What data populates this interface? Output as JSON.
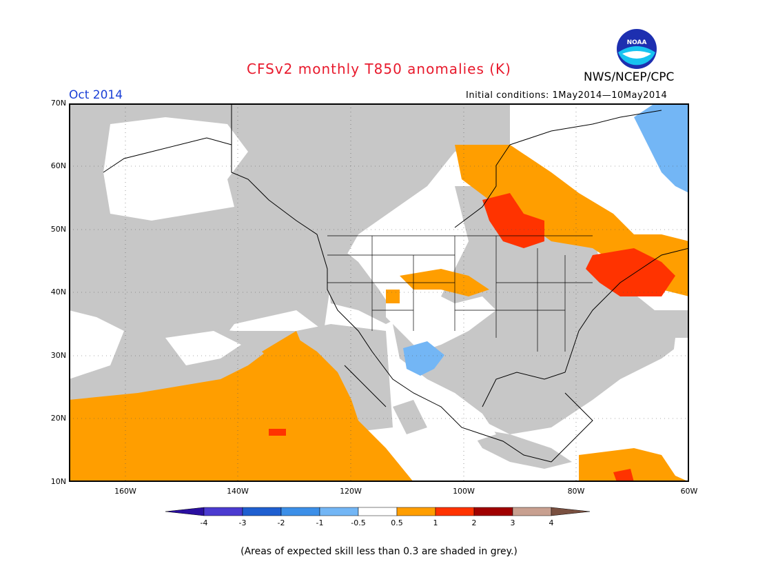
{
  "title": "CFSv2 monthly T850 anomalies (K)",
  "period": "Oct 2014",
  "agency": "NWS/NCEP/CPC",
  "initial_conditions": "Initial conditions: 1May2014—10May2014",
  "footnote": "(Areas of expected skill less than 0.3 are shaded in grey.)",
  "logo_text": "NOAA",
  "map": {
    "projection": "lat-lon",
    "lon_range": [
      "170W",
      "60W"
    ],
    "lat_range": [
      "10N",
      "70N"
    ],
    "lat_labels": [
      "70N",
      "60N",
      "50N",
      "40N",
      "30N",
      "20N",
      "10N"
    ],
    "lon_labels": [
      "160W",
      "140W",
      "120W",
      "100W",
      "80W",
      "60W"
    ]
  },
  "colorbar": {
    "labels": [
      "-4",
      "-3",
      "-2",
      "-1",
      "-0.5",
      "0.5",
      "1",
      "2",
      "3",
      "4"
    ],
    "colors": [
      "#2a0fa0",
      "#4b3bd0",
      "#1f5fd0",
      "#3c8fe8",
      "#73b6f5",
      "#ffffff",
      "#ff9e00",
      "#ff3300",
      "#a00000",
      "#c8a090",
      "#7a5040"
    ]
  },
  "colors": {
    "title": "#e8192c",
    "period": "#1a3fd6",
    "skill_grey": "#c7c7c7",
    "warm_1": "#ff9e00",
    "warm_2": "#ff3300",
    "cool_1": "#73b6f5"
  }
}
